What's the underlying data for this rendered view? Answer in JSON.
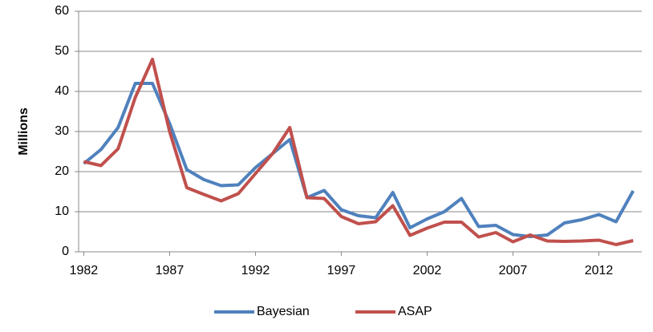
{
  "chart_data": {
    "type": "line",
    "ylabel": "Millions",
    "x": [
      1982,
      1983,
      1984,
      1985,
      1986,
      1987,
      1988,
      1989,
      1990,
      1991,
      1992,
      1993,
      1994,
      1995,
      1996,
      1997,
      1998,
      1999,
      2000,
      2001,
      2002,
      2003,
      2004,
      2005,
      2006,
      2007,
      2008,
      2009,
      2010,
      2011,
      2012,
      2013,
      2014
    ],
    "series": [
      {
        "name": "Bayesian",
        "color": "#4f81bd",
        "values": [
          22,
          25.5,
          31,
          42,
          42,
          32,
          20.5,
          18,
          16.5,
          16.7,
          21,
          24.5,
          28,
          13.5,
          15.3,
          10.5,
          9,
          8.5,
          14.8,
          6,
          8.2,
          10,
          13.3,
          6.3,
          6.6,
          4.3,
          3.8,
          4.2,
          7.2,
          8,
          9.3,
          7.5,
          15.2
        ]
      },
      {
        "name": "ASAP",
        "color": "#c0504d",
        "values": [
          22.5,
          21.5,
          25.7,
          38.5,
          48,
          30,
          16,
          14.3,
          12.7,
          14.5,
          19.5,
          24.5,
          31,
          13.5,
          13.3,
          8.8,
          7,
          7.5,
          11.5,
          4.1,
          5.9,
          7.4,
          7.4,
          3.7,
          4.8,
          2.5,
          4.2,
          2.7,
          2.6,
          2.7,
          2.9,
          1.8,
          2.8
        ]
      }
    ],
    "xlim": [
      1981.7,
      2014.5
    ],
    "xticks": [
      1982,
      1987,
      1992,
      1997,
      2002,
      2007,
      2012
    ],
    "ylim": [
      0,
      60
    ],
    "yticks": [
      0,
      10,
      20,
      30,
      40,
      50,
      60
    ],
    "grid": true,
    "legend": "bottom"
  }
}
